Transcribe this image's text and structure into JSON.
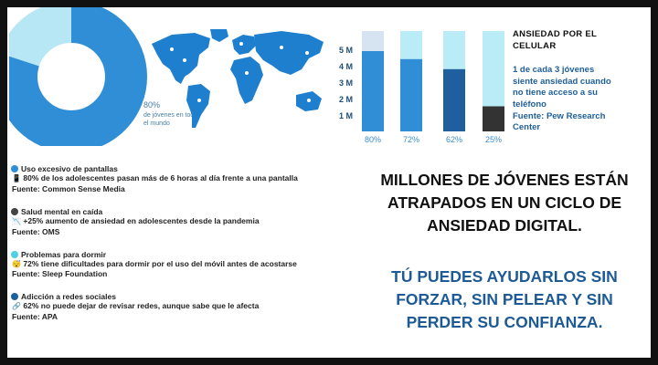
{
  "donut": {
    "percent_value": 80,
    "percent_label": "80%",
    "caption": "de jóvenes en todo el mundo",
    "colors": {
      "main": "#2f8ed6",
      "rest": "#b7e6f5"
    }
  },
  "map": {
    "color": "#1f7fcf"
  },
  "bar_chart": {
    "y_ticks": [
      "5 M",
      "4 M",
      "3 M",
      "2 M",
      "1 M"
    ],
    "x_labels": [
      "80%",
      "72%",
      "62%",
      "25%"
    ],
    "fill_fractions": [
      0.8,
      0.72,
      0.62,
      0.25
    ],
    "colors": {
      "fills": [
        "#2f8ed6",
        "#2f8ed6",
        "#1f5f9e",
        "#333333"
      ],
      "tracks": [
        "#d6e4f2",
        "#b9ecf6",
        "#b9ecf6",
        "#b9ecf6"
      ]
    }
  },
  "side": {
    "title": "ANSIEDAD POR EL CELULAR",
    "text_lines": [
      "1 de cada 3 jóvenes",
      "siente ansiedad cuando",
      "no tiene acceso a su",
      "teléfono",
      "Fuente: Pew Research",
      "Center"
    ]
  },
  "stats": [
    {
      "title": "Uso excesivo de pantallas",
      "icon": "phone-icon",
      "emoji": "📱",
      "text": "80% de los adolescentes pasan más de 6 horas al día frente a una pantalla",
      "source": "Fuente: Common Sense Media",
      "dot_color": "#2f8ed6"
    },
    {
      "title": "Salud mental en caída",
      "icon": "chart-down-icon",
      "emoji": "📉",
      "text": "+25% aumento de ansiedad en adolescentes desde la pandemia",
      "source": "Fuente: OMS",
      "dot_color": "#444444"
    },
    {
      "title": "Problemas para dormir",
      "icon": "tired-face-icon",
      "emoji": "😴",
      "text": "72% tiene dificultades para dormir por el uso del móvil antes de acostarse",
      "source": "Fuente: Sleep Foundation",
      "dot_color": "#4fd0e4"
    },
    {
      "title": "Adicción a redes sociales",
      "icon": "link-icon",
      "emoji": "🔗",
      "text": "62% no puede dejar de revisar redes, aunque sabe que le afecta",
      "source": "Fuente: APA",
      "dot_color": "#1f5f9e"
    }
  ],
  "headline": {
    "lines": [
      "MILLONES DE JÓVENES ESTÁN",
      "ATRAPADOS EN UN CICLO DE",
      "ANSIEDAD DIGITAL."
    ],
    "cta_lines": [
      "TÚ PUEDES AYUDARLOS SIN",
      "FORZAR, SIN PELEAR Y SIN",
      "PERDER SU CONFIANZA."
    ]
  }
}
